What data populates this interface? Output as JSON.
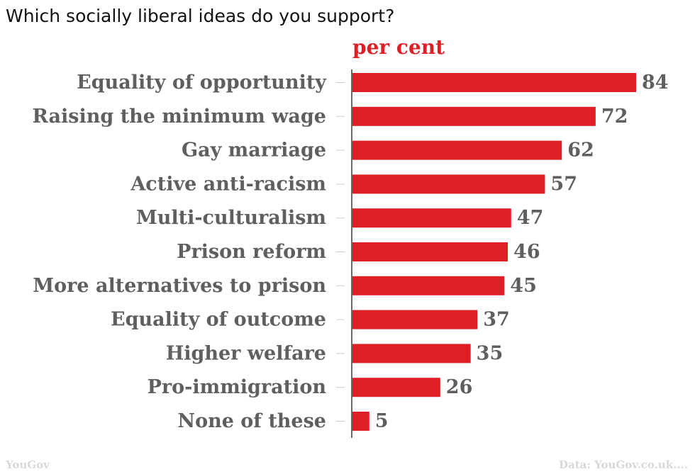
{
  "colors": {
    "bar": "#df1f26",
    "label": "#5f5f5f",
    "unit": "#df1f26",
    "axis": "#333333",
    "tick": "#cccccc",
    "footer": "#d8d8d8"
  },
  "chart_data": {
    "type": "bar",
    "orientation": "horizontal",
    "title": "Which socially liberal ideas do you support?",
    "unit_label": "per cent",
    "categories": [
      "Equality of opportunity",
      "Raising the minimum wage",
      "Gay marriage",
      "Active anti-racism",
      "Multi-culturalism",
      "Prison reform",
      "More alternatives to prison",
      "Equality of outcome",
      "Higher welfare",
      "Pro-immigration",
      "None of these"
    ],
    "values": [
      84,
      72,
      62,
      57,
      47,
      46,
      45,
      37,
      35,
      26,
      5
    ],
    "xlim": [
      0,
      84
    ],
    "grid": false,
    "data_labels": true
  },
  "footer": {
    "source_left": "YouGov",
    "source_right": "Data: YouGov.co.uk...."
  }
}
